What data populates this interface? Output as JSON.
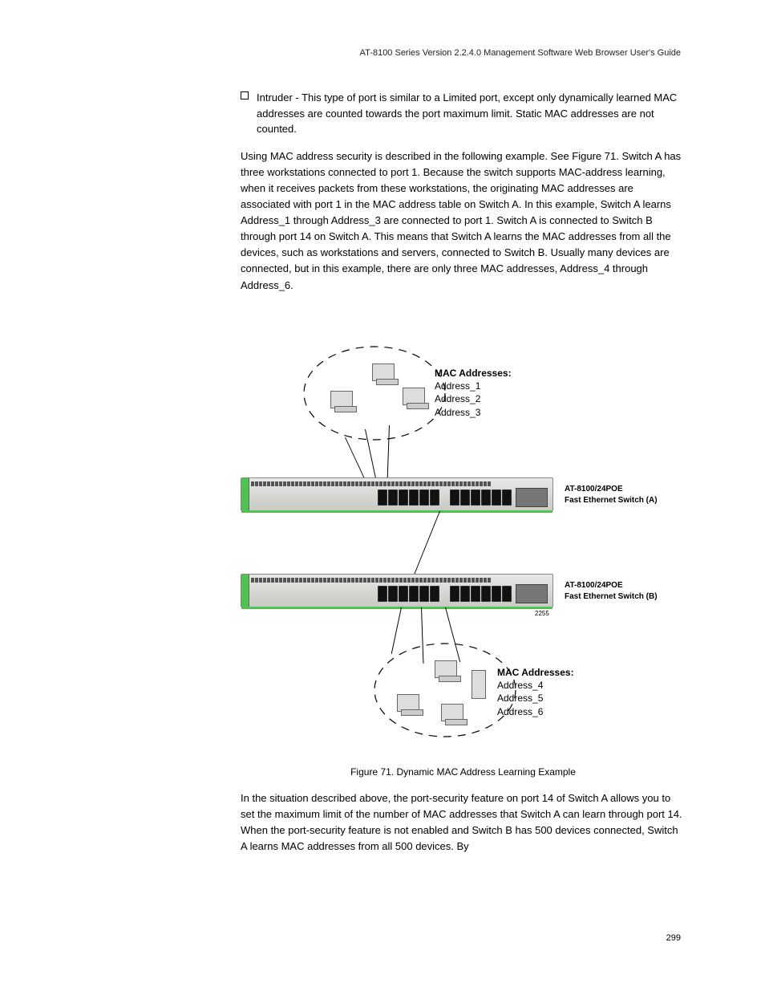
{
  "header": {
    "title": "AT-8100 Series Version 2.2.4.0 Management Software Web Browser User's Guide"
  },
  "bullet": {
    "text": "Intruder - This type of port is similar to a Limited port, except only dynamically learned MAC addresses are counted towards the port maximum limit. Static MAC addresses are not counted."
  },
  "intro": {
    "text": "Using MAC address security is described in the following example. See Figure 71. Switch A has three workstations connected to port 1. Because the switch supports MAC-address learning, when it receives packets from these workstations, the originating MAC addresses are associated with port 1 in the MAC address table on Switch A. In this example, Switch A learns Address_1 through Address_3 are connected to port 1. Switch A is connected to Switch B through port 14 on Switch A. This means that Switch A learns the MAC addresses from all the devices, such as workstations and servers, connected to Switch B. Usually many devices are connected, but in this example, there are only three MAC addresses, Address_4 through Address_6."
  },
  "figure": {
    "mac_top": {
      "header": "MAC Addresses:",
      "a1": "Address_1",
      "a2": "Address_2",
      "a3": "Address_3"
    },
    "mac_bottom": {
      "header": "MAC Addresses:",
      "a4": "Address_4",
      "a5": "Address_5",
      "a6": "Address_6"
    },
    "switch_a": {
      "model": "AT-8100/24POE",
      "desc": "Fast Ethernet Switch (A)"
    },
    "switch_b": {
      "model": "AT-8100/24POE",
      "desc": "Fast Ethernet Switch (B)"
    },
    "small_num": "2255",
    "caption": "Figure 71. Dynamic MAC Address Learning Example"
  },
  "closing": {
    "text": "In the situation described above, the port-security feature on port 14 of Switch A allows you to set the maximum limit of the number of MAC addresses that Switch A can learn through port 14. When the port-security feature is not enabled and Switch B has 500 devices connected, Switch A learns MAC addresses from all 500 devices. By"
  },
  "page_num": "299"
}
